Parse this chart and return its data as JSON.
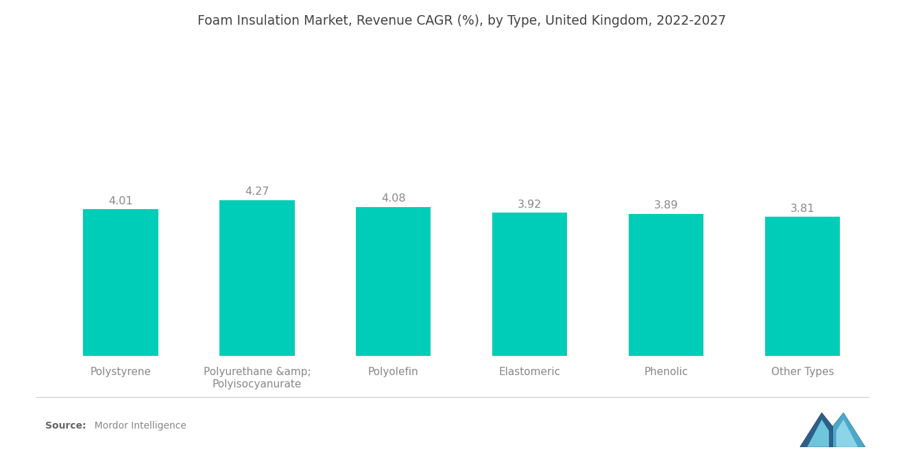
{
  "title": "Foam Insulation Market, Revenue CAGR (%), by Type, United Kingdom, 2022-2027",
  "categories": [
    "Polystyrene",
    "Polyurethane &amp;\nPolyisocyanurate",
    "Polyolefin",
    "Elastomeric",
    "Phenolic",
    "Other Types"
  ],
  "values": [
    4.01,
    4.27,
    4.08,
    3.92,
    3.89,
    3.81
  ],
  "bar_color": "#00CDB7",
  "background_color": "#ffffff",
  "title_fontsize": 13.5,
  "label_fontsize": 11,
  "value_fontsize": 11.5,
  "ylim": [
    0,
    8.5
  ],
  "bar_width": 0.55,
  "source_bold": "Source:",
  "source_rest": "  Mordor Intelligence"
}
